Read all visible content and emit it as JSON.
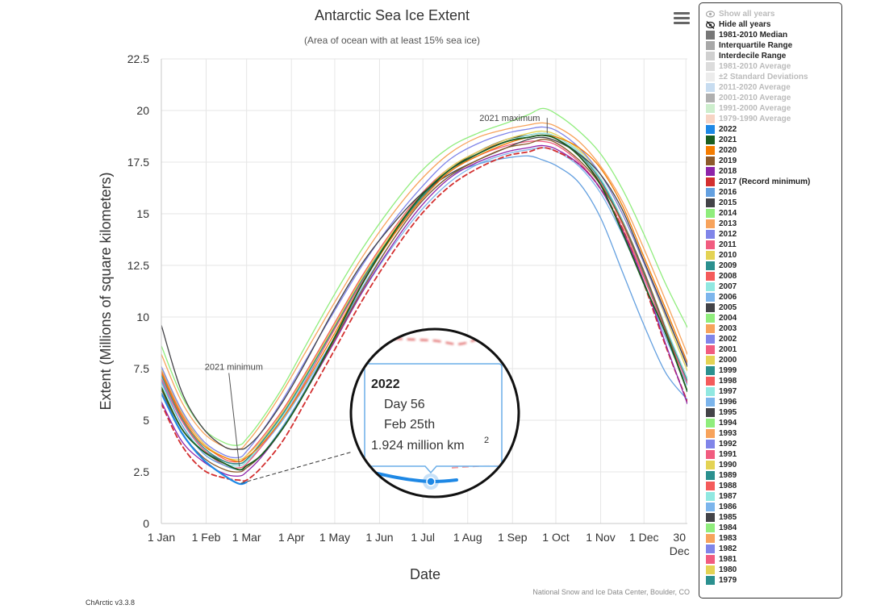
{
  "header": {
    "title": "Antarctic Sea Ice Extent",
    "subtitle": "(Area of ocean with at least 15% sea ice)"
  },
  "footer": {
    "credits": "National Snow and Ice Data Center, Boulder, CO",
    "version": "ChArctic v3.3.8"
  },
  "menu": {
    "icon": "hamburger-menu-icon"
  },
  "tooltip": {
    "year": "2022",
    "day": "Day 56",
    "date": "Feb 25th",
    "value_text": "1.924 million km",
    "value_sup": "2"
  },
  "legend": {
    "show_all": "Show all years",
    "hide_all": "Hide all years",
    "items": [
      {
        "label": "1981-2010 Median",
        "color": "#777777",
        "dim": false
      },
      {
        "label": "Interquartile Range",
        "color": "#a8a8a8",
        "dim": false
      },
      {
        "label": "Interdecile Range",
        "color": "#d0d0d0",
        "dim": false
      },
      {
        "label": "1981-2010 Average",
        "color": "#dcdcdc",
        "dim": true
      },
      {
        "label": "±2 Standard Deviations",
        "color": "#ececec",
        "dim": true
      },
      {
        "label": "2011-2020 Average",
        "color": "#c7dcf0",
        "dim": true
      },
      {
        "label": "2001-2010 Average",
        "color": "#b0b0b0",
        "dim": true
      },
      {
        "label": "1991-2000 Average",
        "color": "#cdeecd",
        "dim": true
      },
      {
        "label": "1979-1990 Average",
        "color": "#f7d4c4",
        "dim": true
      },
      {
        "label": "2022",
        "color": "#1e88e5",
        "dim": false
      },
      {
        "label": "2021",
        "color": "#1b5e20",
        "dim": false
      },
      {
        "label": "2020",
        "color": "#f57c00",
        "dim": false
      },
      {
        "label": "2019",
        "color": "#8d5a2b",
        "dim": false
      },
      {
        "label": "2018",
        "color": "#8e24aa",
        "dim": false
      },
      {
        "label": "2017 (Record minimum)",
        "color": "#d32f2f",
        "dim": false
      },
      {
        "label": "2016",
        "color": "#64a0e0",
        "dim": false
      },
      {
        "label": "2015",
        "color": "#434348",
        "dim": false
      },
      {
        "label": "2014",
        "color": "#90ed7d",
        "dim": false
      },
      {
        "label": "2013",
        "color": "#f7a35c",
        "dim": false
      },
      {
        "label": "2012",
        "color": "#8085e9",
        "dim": false
      },
      {
        "label": "2011",
        "color": "#f15c80",
        "dim": false
      },
      {
        "label": "2010",
        "color": "#e4d354",
        "dim": false
      },
      {
        "label": "2009",
        "color": "#2b908f",
        "dim": false
      },
      {
        "label": "2008",
        "color": "#f45b5b",
        "dim": false
      },
      {
        "label": "2007",
        "color": "#91e8e1",
        "dim": false
      },
      {
        "label": "2006",
        "color": "#7cb5ec",
        "dim": false
      },
      {
        "label": "2005",
        "color": "#434348",
        "dim": false
      },
      {
        "label": "2004",
        "color": "#90ed7d",
        "dim": false
      },
      {
        "label": "2003",
        "color": "#f7a35c",
        "dim": false
      },
      {
        "label": "2002",
        "color": "#8085e9",
        "dim": false
      },
      {
        "label": "2001",
        "color": "#f15c80",
        "dim": false
      },
      {
        "label": "2000",
        "color": "#e4d354",
        "dim": false
      },
      {
        "label": "1999",
        "color": "#2b908f",
        "dim": false
      },
      {
        "label": "1998",
        "color": "#f45b5b",
        "dim": false
      },
      {
        "label": "1997",
        "color": "#91e8e1",
        "dim": false
      },
      {
        "label": "1996",
        "color": "#7cb5ec",
        "dim": false
      },
      {
        "label": "1995",
        "color": "#434348",
        "dim": false
      },
      {
        "label": "1994",
        "color": "#90ed7d",
        "dim": false
      },
      {
        "label": "1993",
        "color": "#f7a35c",
        "dim": false
      },
      {
        "label": "1992",
        "color": "#8085e9",
        "dim": false
      },
      {
        "label": "1991",
        "color": "#f15c80",
        "dim": false
      },
      {
        "label": "1990",
        "color": "#e4d354",
        "dim": false
      },
      {
        "label": "1989",
        "color": "#2b908f",
        "dim": false
      },
      {
        "label": "1988",
        "color": "#f45b5b",
        "dim": false
      },
      {
        "label": "1987",
        "color": "#91e8e1",
        "dim": false
      },
      {
        "label": "1986",
        "color": "#7cb5ec",
        "dim": false
      },
      {
        "label": "1985",
        "color": "#434348",
        "dim": false
      },
      {
        "label": "1984",
        "color": "#90ed7d",
        "dim": false
      },
      {
        "label": "1983",
        "color": "#f7a35c",
        "dim": false
      },
      {
        "label": "1982",
        "color": "#8085e9",
        "dim": false
      },
      {
        "label": "1981",
        "color": "#f15c80",
        "dim": false
      },
      {
        "label": "1980",
        "color": "#e4d354",
        "dim": false
      },
      {
        "label": "1979",
        "color": "#2b908f",
        "dim": false
      }
    ]
  },
  "chart_data": {
    "type": "line",
    "title": "Antarctic Sea Ice Extent",
    "subtitle": "(Area of ocean with at least 15% sea ice)",
    "xlabel": "Date",
    "ylabel": "Extent (Millions of square kilometers)",
    "xlim": [
      1,
      365
    ],
    "ylim": [
      0,
      22.5
    ],
    "grid": true,
    "legend_position": "right",
    "yticks": [
      0,
      2.5,
      5,
      7.5,
      10,
      12.5,
      15,
      17.5,
      20,
      22.5
    ],
    "ytick_labels": [
      "0",
      "2.5",
      "5",
      "7.5",
      "10",
      "12.5",
      "15",
      "17.5",
      "20",
      "22.5"
    ],
    "xticks": [
      1,
      32,
      60,
      91,
      121,
      152,
      182,
      213,
      244,
      274,
      305,
      335,
      364
    ],
    "xtick_labels": [
      "1 Jan",
      "1 Feb",
      "1 Mar",
      "1 Apr",
      "1 May",
      "1 Jun",
      "1 Jul",
      "1 Aug",
      "1 Sep",
      "1 Oct",
      "1 Nov",
      "1 Dec",
      "30 Dec"
    ],
    "series_days": [
      1,
      15,
      30,
      45,
      55,
      60,
      70,
      85,
      100,
      120,
      140,
      160,
      180,
      200,
      220,
      240,
      255,
      265,
      275,
      290,
      305,
      320,
      335,
      350,
      365
    ],
    "series": [
      {
        "name": "2022",
        "color": "#1e88e5",
        "width": 2.2,
        "values": [
          6.3,
          4.4,
          3.1,
          2.3,
          1.92,
          2.0
        ]
      },
      {
        "name": "2021",
        "color": "#1b5e20",
        "width": 1.8,
        "values": [
          6.6,
          4.6,
          3.5,
          2.9,
          2.6,
          2.8,
          3.3,
          4.6,
          6.3,
          8.9,
          11.6,
          13.9,
          15.8,
          17.1,
          17.9,
          18.5,
          18.7,
          18.8,
          18.6,
          17.8,
          16.4,
          14.1,
          11.6,
          9.2,
          6.4
        ]
      },
      {
        "name": "2020",
        "color": "#f57c00",
        "width": 1.3,
        "values": [
          7.3,
          5.2,
          3.8,
          3.2,
          3.0,
          3.2,
          3.8,
          5.1,
          6.7,
          9.1,
          11.6,
          13.8,
          15.6,
          17.0,
          17.8,
          18.4,
          18.7,
          18.8,
          18.7,
          18.2,
          17.2,
          15.4,
          12.9,
          10.4,
          7.8
        ]
      },
      {
        "name": "2019",
        "color": "#8d5a2b",
        "width": 1.3,
        "values": [
          6.5,
          4.4,
          3.2,
          2.6,
          2.5,
          2.7,
          3.3,
          4.6,
          6.3,
          8.8,
          11.3,
          13.6,
          15.5,
          16.8,
          17.6,
          18.2,
          18.4,
          18.6,
          18.4,
          17.6,
          16.4,
          14.6,
          12.2,
          9.4,
          6.4
        ]
      },
      {
        "name": "2018",
        "color": "#8e24aa",
        "width": 1.3,
        "values": [
          5.9,
          4.0,
          3.0,
          2.4,
          2.3,
          2.5,
          3.2,
          4.6,
          6.3,
          8.7,
          11.2,
          13.4,
          15.3,
          16.7,
          17.5,
          18.0,
          18.2,
          18.3,
          18.1,
          17.4,
          16.2,
          14.2,
          11.7,
          8.7,
          5.8
        ]
      },
      {
        "name": "2017",
        "color": "#d32f2f",
        "width": 1.8,
        "dashed": true,
        "values": [
          5.8,
          3.8,
          2.6,
          2.2,
          2.1,
          2.1,
          2.7,
          4.0,
          5.8,
          8.3,
          10.8,
          13.0,
          14.9,
          16.3,
          17.2,
          17.8,
          18.0,
          18.2,
          18.0,
          17.4,
          16.2,
          14.3,
          11.6,
          8.6,
          5.9
        ]
      },
      {
        "name": "2016",
        "color": "#64a0e0",
        "width": 1.3,
        "values": [
          6.9,
          4.8,
          3.4,
          2.8,
          2.6,
          2.7,
          3.3,
          4.7,
          6.4,
          8.9,
          11.4,
          13.6,
          15.5,
          16.8,
          17.4,
          17.7,
          17.8,
          17.6,
          17.3,
          16.5,
          14.8,
          12.2,
          9.6,
          7.3,
          6.0
        ]
      },
      {
        "name": "2015",
        "color": "#434348",
        "width": 1.3,
        "values": [
          9.6,
          6.4,
          4.6,
          3.7,
          3.6,
          3.7,
          4.4,
          5.9,
          7.7,
          10.3,
          12.6,
          14.4,
          15.9,
          16.9,
          17.6,
          18.2,
          18.6,
          18.7,
          18.5,
          17.9,
          16.9,
          15.2,
          12.7,
          10.2,
          7.6
        ]
      },
      {
        "name": "2014",
        "color": "#90ed7d",
        "width": 1.3,
        "values": [
          8.6,
          6.2,
          4.6,
          3.9,
          3.8,
          4.1,
          5.0,
          6.6,
          8.5,
          11.0,
          13.3,
          15.3,
          17.0,
          18.2,
          18.9,
          19.4,
          19.8,
          20.1,
          19.8,
          19.0,
          17.9,
          16.2,
          14.0,
          11.6,
          9.5
        ]
      },
      {
        "name": "2013",
        "color": "#f7a35c",
        "width": 1.3,
        "values": [
          8.2,
          5.9,
          4.4,
          3.7,
          3.6,
          3.9,
          4.8,
          6.4,
          8.2,
          10.6,
          12.9,
          14.9,
          16.6,
          17.9,
          18.7,
          19.1,
          19.3,
          19.4,
          19.2,
          18.5,
          17.3,
          15.6,
          13.3,
          10.8,
          8.2
        ]
      },
      {
        "name": "2012",
        "color": "#8085e9",
        "width": 1.3,
        "values": [
          7.6,
          5.5,
          4.0,
          3.3,
          3.2,
          3.5,
          4.4,
          6.0,
          7.8,
          10.2,
          12.5,
          14.5,
          16.2,
          17.6,
          18.4,
          18.9,
          19.1,
          19.2,
          19.0,
          18.2,
          16.9,
          15.0,
          12.6,
          10.1,
          7.7
        ]
      },
      {
        "name": "2011",
        "color": "#f15c80",
        "width": 1.3,
        "values": [
          7.0,
          5.0,
          3.6,
          2.8,
          2.7,
          2.9,
          3.7,
          5.1,
          6.8,
          9.3,
          11.7,
          13.8,
          15.6,
          17.0,
          17.8,
          18.3,
          18.5,
          18.5,
          18.3,
          17.5,
          16.2,
          14.3,
          11.9,
          9.3,
          6.8
        ]
      },
      {
        "name": "2010",
        "color": "#e4d354",
        "width": 1.3,
        "values": [
          7.5,
          5.4,
          3.9,
          3.2,
          3.1,
          3.3,
          4.0,
          5.4,
          7.1,
          9.5,
          11.9,
          14.0,
          15.8,
          17.2,
          18.0,
          18.6,
          18.9,
          19.0,
          18.8,
          18.1,
          16.9,
          15.0,
          12.6,
          10.0,
          7.4
        ]
      },
      {
        "name": "2009",
        "color": "#2b908f",
        "width": 1.3,
        "values": [
          7.2,
          5.1,
          3.7,
          3.0,
          2.9,
          3.1,
          3.9,
          5.3,
          7.0,
          9.4,
          11.8,
          13.9,
          15.7,
          17.0,
          17.9,
          18.5,
          18.7,
          18.8,
          18.6,
          17.9,
          16.6,
          14.6,
          12.1,
          9.4,
          6.9
        ]
      },
      {
        "name": "2008",
        "color": "#f45b5b",
        "width": 1.3,
        "values": [
          7.4,
          5.3,
          3.9,
          3.1,
          3.0,
          3.3,
          4.1,
          5.5,
          7.2,
          9.6,
          12.0,
          14.1,
          15.9,
          17.2,
          18.0,
          18.5,
          18.7,
          18.8,
          18.6,
          17.8,
          16.5,
          14.5,
          12.0,
          9.3,
          6.8
        ]
      },
      {
        "name": "2007",
        "color": "#91e8e1",
        "width": 1.3,
        "values": [
          6.8,
          4.8,
          3.5,
          2.9,
          2.8,
          3.0,
          3.8,
          5.2,
          6.9,
          9.3,
          11.7,
          13.8,
          15.6,
          17.0,
          17.9,
          18.5,
          18.8,
          18.9,
          18.7,
          18.0,
          16.7,
          14.7,
          12.2,
          9.5,
          7.0
        ]
      },
      {
        "name": "2006",
        "color": "#7cb5ec",
        "width": 1.3,
        "values": [
          7.1,
          5.0,
          3.6,
          2.9,
          2.8,
          3.0,
          3.7,
          5.0,
          6.6,
          8.9,
          11.2,
          13.3,
          15.1,
          16.5,
          17.4,
          17.9,
          18.1,
          18.2,
          18.0,
          17.3,
          16.0,
          14.0,
          11.6,
          9.0,
          6.7
        ]
      },
      {
        "name": "2005",
        "color": "#434348",
        "width": 1.3,
        "values": [
          7.0,
          5.0,
          3.6,
          3.0,
          2.9,
          3.1,
          3.9,
          5.3,
          7.0,
          9.4,
          11.8,
          13.9,
          15.7,
          17.1,
          18.0,
          18.6,
          18.8,
          18.9,
          18.7,
          18.0,
          16.7,
          14.7,
          12.2,
          9.5,
          7.0
        ]
      }
    ],
    "annotations": [
      {
        "label": "2021 maximum",
        "x": 268,
        "y": 18.9
      },
      {
        "label": "2021 minimum",
        "x": 55,
        "y": 2.6
      }
    ]
  }
}
